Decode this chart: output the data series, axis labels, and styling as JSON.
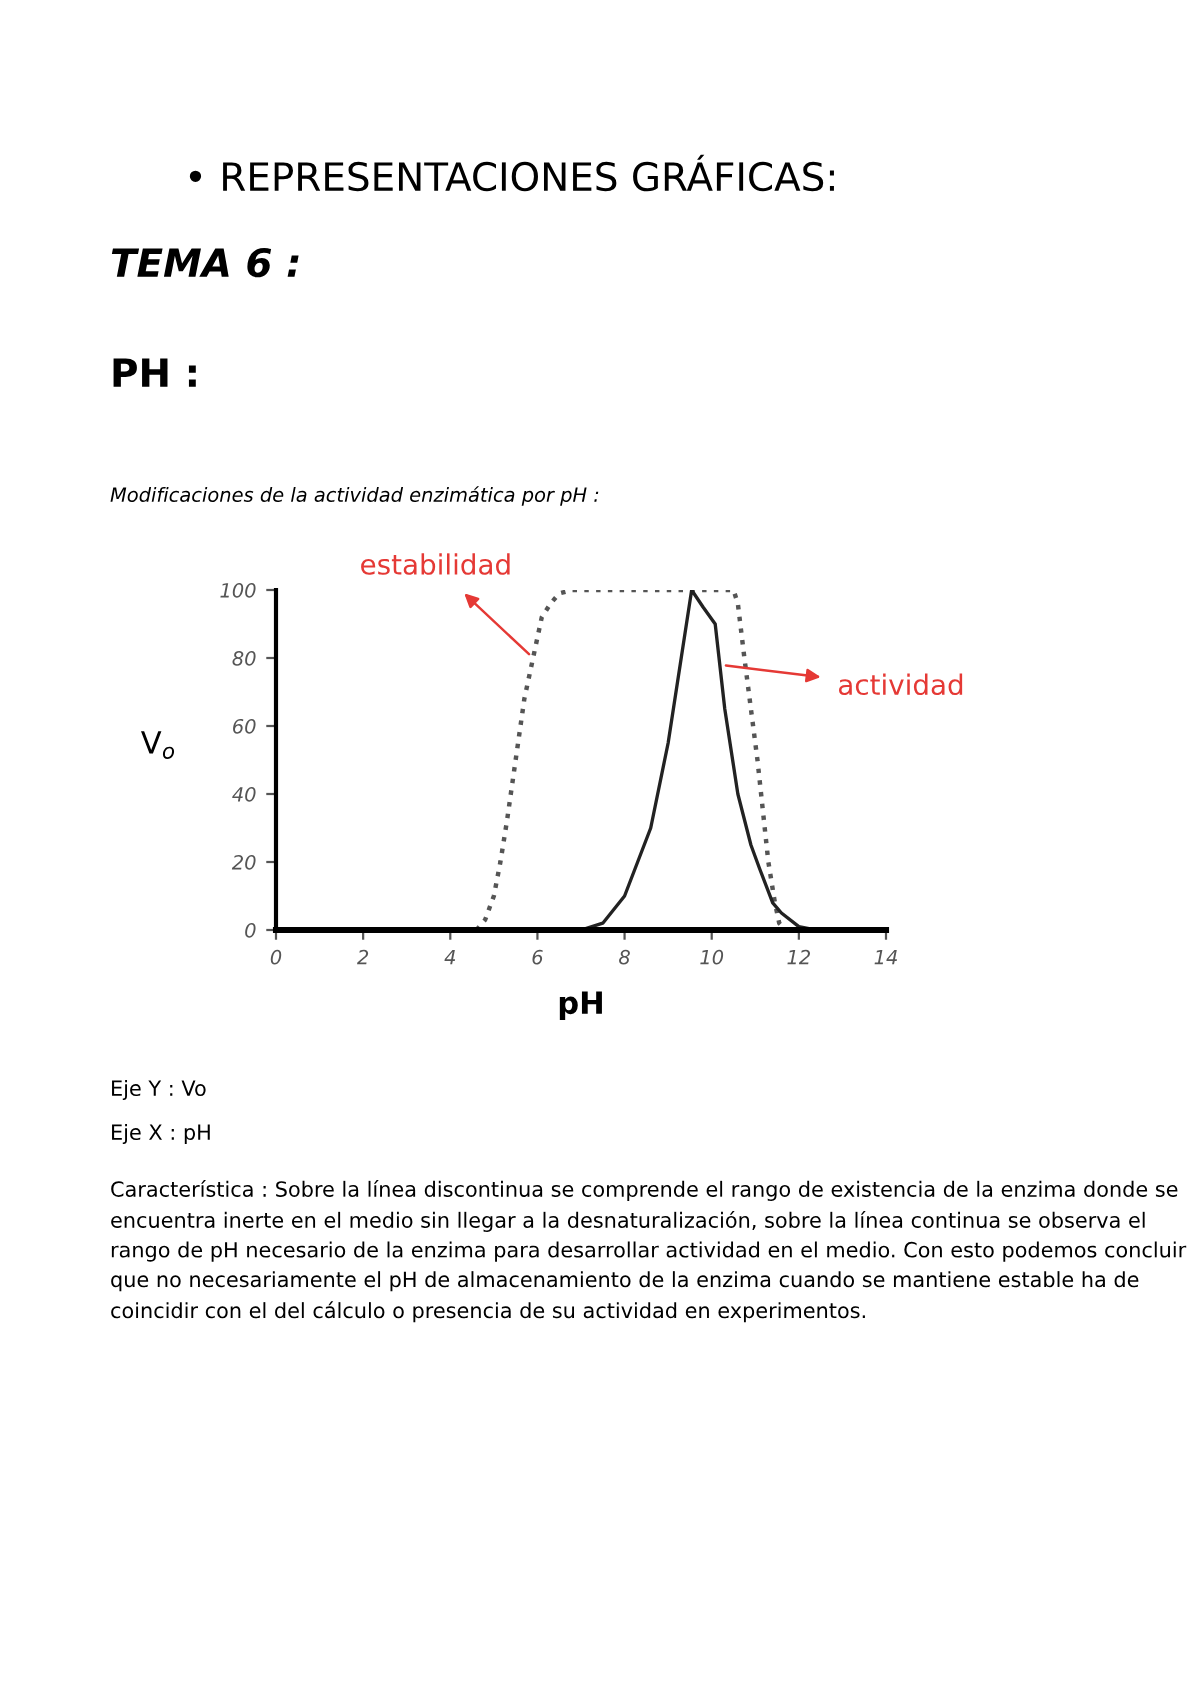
{
  "chart_data": {
    "type": "line",
    "title": "• REPRESENTACIONES GRÁFICAS:",
    "subtitle": "TEMA 6 :",
    "xlabel": "pH",
    "ylabel": "V$_{o}$",
    "xlim": [
      0,
      14
    ],
    "xticks": [
      0,
      2,
      4,
      6,
      8,
      10,
      12,
      14
    ],
    "ylim": [
      0,
      100
    ],
    "yticks": [
      0,
      20,
      40,
      60,
      80,
      100
    ],
    "grid": false,
    "legend": false,
    "marker": "none",
    "series": [
      {
        "color": "#555555",
        "line_style": "dotted",
        "x": [
          4.6,
          4.8,
          5.0,
          5.15,
          5.3,
          5.5,
          5.7,
          5.9,
          6.1,
          6.3,
          6.5,
          6.8,
          10.5,
          10.6,
          10.75,
          10.9,
          11.05,
          11.2,
          11.3,
          11.45,
          11.55,
          11.7
        ],
        "values": [
          0,
          3,
          10,
          20,
          32,
          50,
          68,
          80,
          92,
          96,
          99,
          100,
          100,
          96,
          80,
          65,
          50,
          32,
          20,
          8,
          2,
          0
        ]
      },
      {
        "color": "#222222",
        "line_style": "solid",
        "x": [
          6.8,
          7.0,
          7.5,
          8.0,
          8.3,
          8.6,
          9.0,
          9.3,
          9.54,
          9.8,
          10.08,
          10.3,
          10.6,
          10.9,
          11.1,
          11.4,
          11.6,
          12.0,
          12.4
        ],
        "values": [
          0,
          0,
          2,
          10,
          20,
          30,
          55,
          80,
          100,
          95,
          90,
          65,
          40,
          25,
          18,
          8,
          5,
          1,
          0
        ]
      }
    ],
    "annotations": [
      {
        "text": "estabilidad",
        "x": 5.9,
        "y": 80
      },
      {
        "text": "actividad",
        "x": 10.2,
        "y": 78
      },
      "PH :",
      "Modificaciones de la actividad enzimática por pH :",
      "Eje Y : Vo",
      "Eje X : pH",
      "Característica : Sobre la línea discontinua se comprende el rango de existencia de la enzima donde se encuentra inerte en el medio sin llegar a la desnaturalización, sobre la línea continua se observa el rango de pH necesario de la enzima para desarrollar actividad en el medio. Con esto podemos concluir que no necesariamente el pH de almacenamiento de la enzima cuando se mantiene estable ha de coincidir con el del cálculo o presencia de su actividad en experimentos."
    ]
  }
}
